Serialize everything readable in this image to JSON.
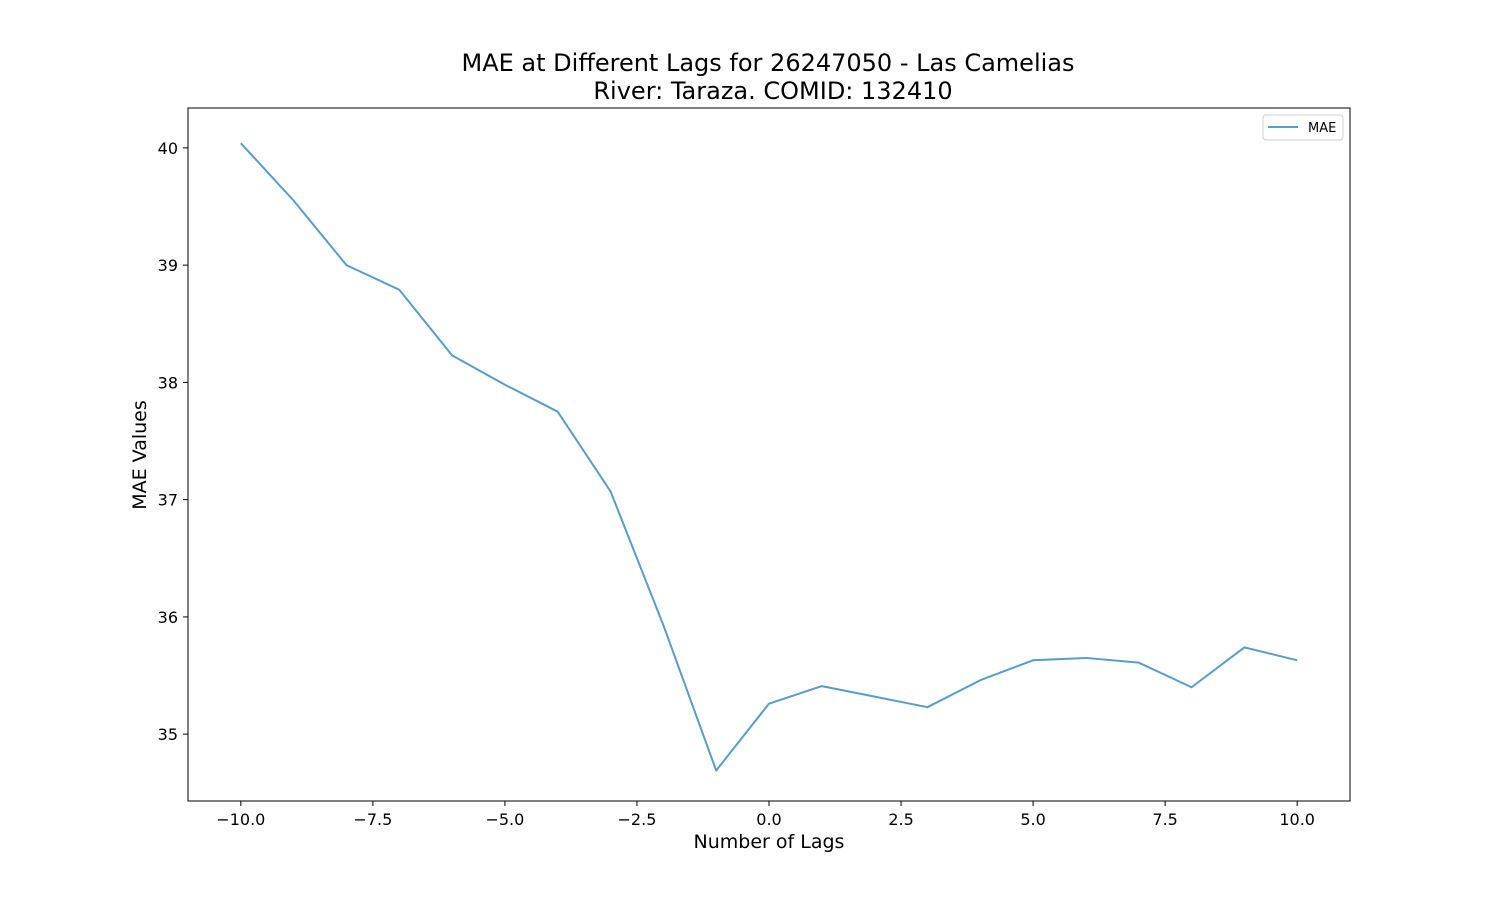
{
  "chart_data": {
    "type": "line",
    "title_line1": "MAE at Different Lags for 26247050 - Las Camelias",
    "title_line2": "River: Taraza. COMID: 132410",
    "xlabel": "Number of Lags",
    "ylabel": "MAE Values",
    "xlim": [
      -11,
      11
    ],
    "ylim": [
      34.43,
      40.34
    ],
    "xticks": [
      -10.0,
      -7.5,
      -5.0,
      -2.5,
      0.0,
      2.5,
      5.0,
      7.5,
      10.0
    ],
    "xtick_labels": [
      "−10.0",
      "−7.5",
      "−5.0",
      "−2.5",
      "0.0",
      "2.5",
      "5.0",
      "7.5",
      "10.0"
    ],
    "yticks": [
      35,
      36,
      37,
      38,
      39,
      40
    ],
    "ytick_labels": [
      "35",
      "36",
      "37",
      "38",
      "39",
      "40"
    ],
    "grid": false,
    "legend_position": "upper-right",
    "series": [
      {
        "name": "MAE",
        "color": "#5b9bc9",
        "x": [
          -10,
          -9,
          -8,
          -7,
          -6,
          -5,
          -4,
          -3,
          -2,
          -1,
          0,
          1,
          2,
          3,
          4,
          5,
          6,
          7,
          8,
          9,
          10
        ],
        "values": [
          40.04,
          39.55,
          39.0,
          38.79,
          38.23,
          37.98,
          37.75,
          37.07,
          35.93,
          34.69,
          35.26,
          35.41,
          35.32,
          35.23,
          35.46,
          35.63,
          35.65,
          35.61,
          35.4,
          35.74,
          35.63
        ]
      }
    ]
  }
}
